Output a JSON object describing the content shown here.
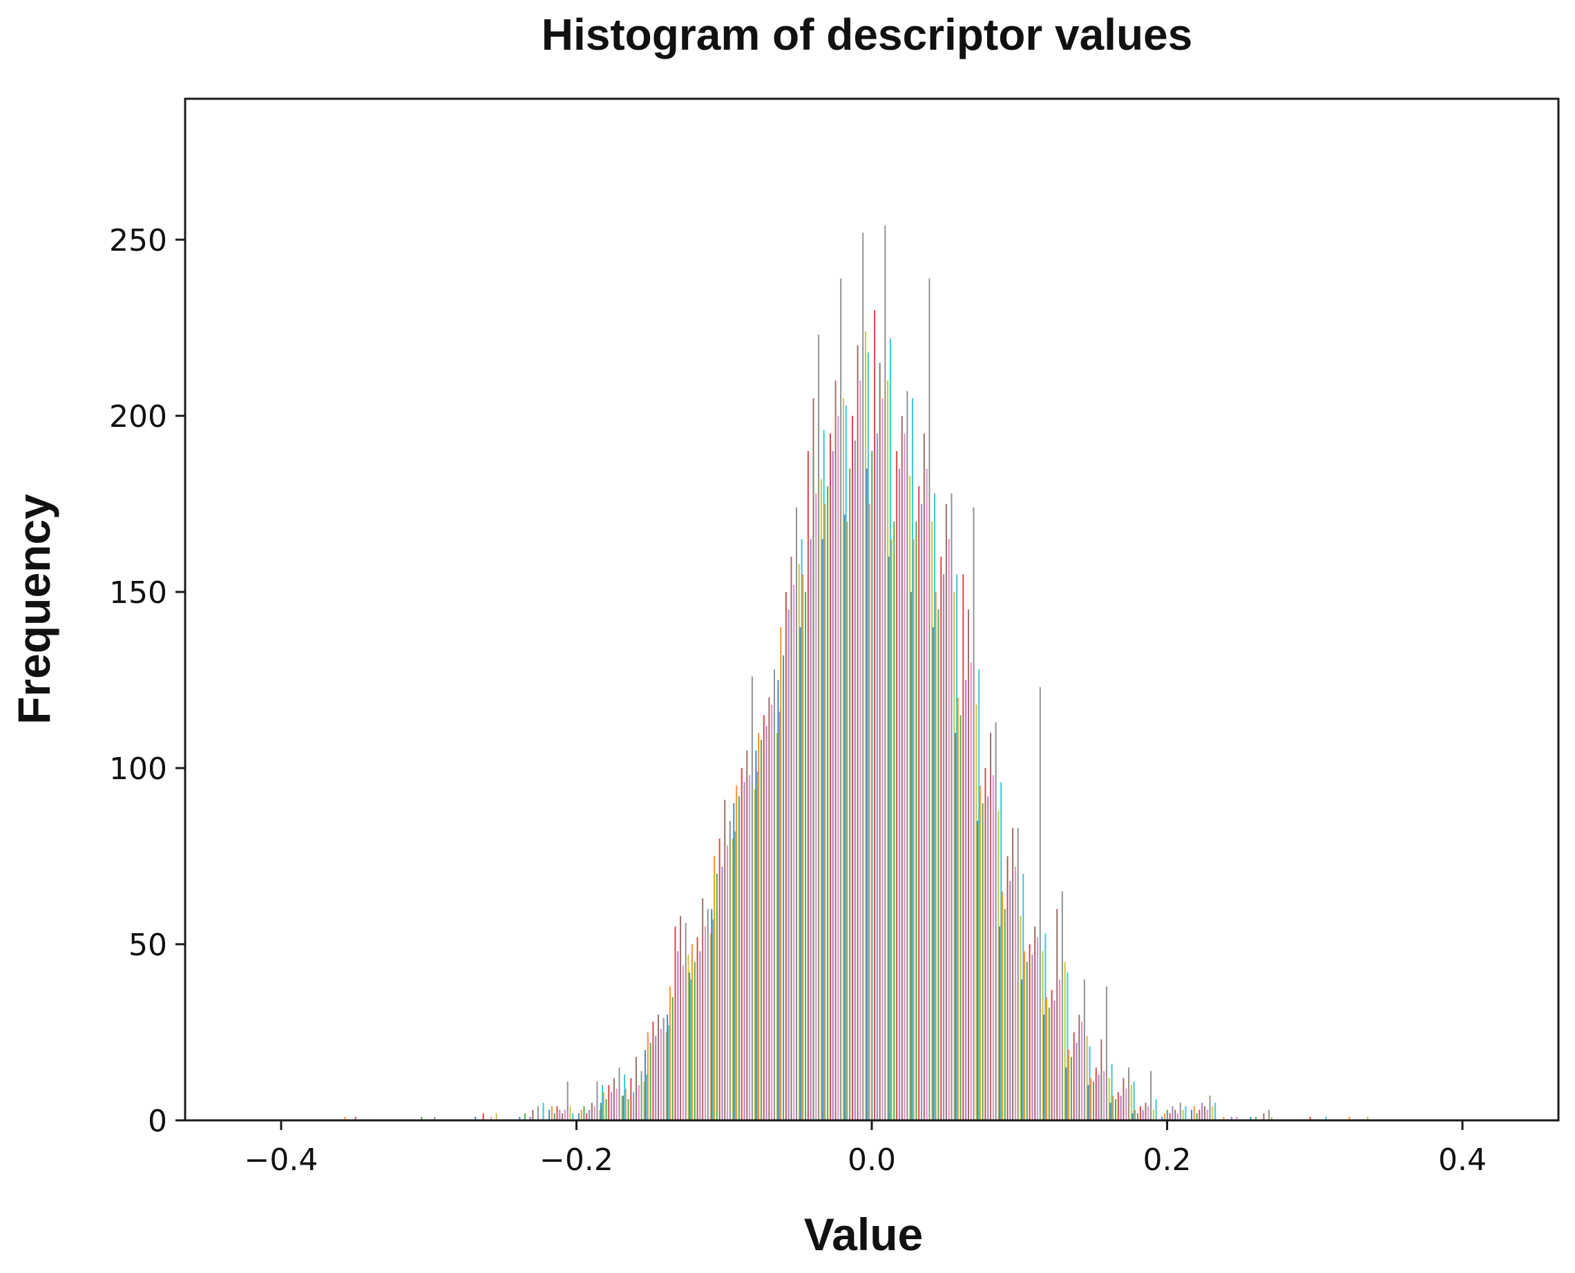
{
  "chart_data": {
    "type": "bar",
    "title": "Histogram of descriptor values",
    "xlabel": "Value",
    "ylabel": "Frequency",
    "xlim": [
      -0.465,
      0.465
    ],
    "ylim": [
      0,
      290
    ],
    "x_ticks": [
      {
        "value": -0.4,
        "label": "−0.4"
      },
      {
        "value": -0.2,
        "label": "−0.2"
      },
      {
        "value": 0.0,
        "label": "0.0"
      },
      {
        "value": 0.2,
        "label": "0.2"
      },
      {
        "value": 0.4,
        "label": "0.4"
      }
    ],
    "y_ticks": [
      {
        "value": 0,
        "label": "0"
      },
      {
        "value": 50,
        "label": "50"
      },
      {
        "value": 100,
        "label": "100"
      },
      {
        "value": 150,
        "label": "150"
      },
      {
        "value": 200,
        "label": "200"
      },
      {
        "value": 250,
        "label": "250"
      }
    ],
    "grid": false,
    "legend": "none",
    "series_colors": [
      "#1f77b4",
      "#ff7f0e",
      "#2ca02c",
      "#d62728",
      "#9467bd",
      "#8c564b",
      "#e377c2",
      "#7f7f7f",
      "#bcbd22",
      "#17becf"
    ],
    "bins": [
      {
        "x": -0.35,
        "values": [
          0,
          1,
          0,
          0,
          0,
          1,
          0,
          0,
          0,
          0
        ]
      },
      {
        "x": -0.3,
        "values": [
          0,
          0,
          1,
          0,
          0,
          0,
          0,
          1,
          0,
          0
        ]
      },
      {
        "x": -0.26,
        "values": [
          1,
          0,
          0,
          2,
          0,
          0,
          1,
          0,
          2,
          0
        ]
      },
      {
        "x": -0.23,
        "values": [
          1,
          0,
          2,
          0,
          1,
          3,
          0,
          4,
          0,
          5
        ]
      },
      {
        "x": -0.21,
        "values": [
          3,
          4,
          2,
          4,
          3,
          2,
          3,
          11,
          4,
          2
        ]
      },
      {
        "x": -0.19,
        "values": [
          2,
          3,
          4,
          2,
          3,
          5,
          4,
          11,
          3,
          10
        ]
      },
      {
        "x": -0.175,
        "values": [
          5,
          8,
          6,
          10,
          8,
          12,
          9,
          15,
          7,
          13
        ]
      },
      {
        "x": -0.16,
        "values": [
          7,
          9,
          6,
          12,
          8,
          18,
          10,
          14,
          11,
          13
        ]
      },
      {
        "x": -0.145,
        "values": [
          20,
          25,
          22,
          28,
          24,
          30,
          26,
          29,
          25,
          27
        ]
      },
      {
        "x": -0.13,
        "values": [
          30,
          38,
          35,
          55,
          48,
          58,
          44,
          56,
          47,
          40
        ]
      },
      {
        "x": -0.115,
        "values": [
          42,
          50,
          45,
          52,
          48,
          63,
          55,
          60,
          53,
          57
        ]
      },
      {
        "x": -0.1,
        "values": [
          60,
          75,
          70,
          80,
          72,
          91,
          78,
          85,
          80,
          82
        ]
      },
      {
        "x": -0.085,
        "values": [
          90,
          95,
          92,
          100,
          96,
          105,
          98,
          126,
          94,
          99
        ]
      },
      {
        "x": -0.07,
        "values": [
          105,
          110,
          108,
          115,
          112,
          120,
          118,
          128,
          110,
          116
        ]
      },
      {
        "x": -0.055,
        "values": [
          125,
          140,
          132,
          150,
          145,
          160,
          152,
          174,
          158,
          165
        ]
      },
      {
        "x": -0.04,
        "values": [
          140,
          155,
          150,
          190,
          165,
          205,
          178,
          223,
          182,
          196
        ]
      },
      {
        "x": -0.025,
        "values": [
          165,
          175,
          180,
          195,
          190,
          210,
          200,
          239,
          205,
          203
        ]
      },
      {
        "x": -0.01,
        "values": [
          172,
          170,
          185,
          200,
          193,
          220,
          210,
          252,
          224,
          218
        ]
      },
      {
        "x": 0.005,
        "values": [
          185,
          175,
          190,
          230,
          195,
          215,
          205,
          254,
          210,
          222
        ]
      },
      {
        "x": 0.02,
        "values": [
          160,
          165,
          170,
          190,
          185,
          200,
          195,
          207,
          183,
          205
        ]
      },
      {
        "x": 0.035,
        "values": [
          150,
          165,
          170,
          180,
          175,
          195,
          185,
          239,
          170,
          178
        ]
      },
      {
        "x": 0.05,
        "values": [
          140,
          150,
          145,
          160,
          155,
          175,
          165,
          178,
          150,
          155
        ]
      },
      {
        "x": 0.065,
        "values": [
          110,
          120,
          115,
          155,
          125,
          145,
          130,
          174,
          118,
          128
        ]
      },
      {
        "x": 0.08,
        "values": [
          85,
          95,
          90,
          100,
          92,
          110,
          98,
          113,
          88,
          96
        ]
      },
      {
        "x": 0.095,
        "values": [
          55,
          65,
          60,
          75,
          68,
          83,
          72,
          83,
          58,
          70
        ]
      },
      {
        "x": 0.11,
        "values": [
          40,
          48,
          45,
          50,
          47,
          55,
          52,
          123,
          48,
          53
        ]
      },
      {
        "x": 0.125,
        "values": [
          30,
          35,
          32,
          37,
          34,
          60,
          40,
          65,
          45,
          42
        ]
      },
      {
        "x": 0.14,
        "values": [
          15,
          20,
          18,
          25,
          22,
          30,
          28,
          40,
          24,
          21
        ]
      },
      {
        "x": 0.155,
        "values": [
          10,
          12,
          11,
          15,
          13,
          23,
          14,
          38,
          12,
          16
        ]
      },
      {
        "x": 0.17,
        "values": [
          5,
          7,
          6,
          8,
          7,
          12,
          9,
          15,
          10,
          11
        ]
      },
      {
        "x": 0.185,
        "values": [
          2,
          3,
          2,
          4,
          3,
          5,
          4,
          14,
          3,
          6
        ]
      },
      {
        "x": 0.205,
        "values": [
          1,
          2,
          3,
          2,
          4,
          3,
          2,
          5,
          3,
          4
        ]
      },
      {
        "x": 0.225,
        "values": [
          3,
          4,
          2,
          3,
          5,
          4,
          3,
          7,
          4,
          5
        ]
      },
      {
        "x": 0.245,
        "values": [
          0,
          1,
          0,
          0,
          1,
          0,
          1,
          0,
          0,
          0
        ]
      },
      {
        "x": 0.265,
        "values": [
          1,
          0,
          1,
          0,
          0,
          2,
          0,
          3,
          1,
          0
        ]
      },
      {
        "x": 0.3,
        "values": [
          0,
          0,
          0,
          1,
          0,
          0,
          0,
          0,
          0,
          1
        ]
      },
      {
        "x": 0.33,
        "values": [
          0,
          1,
          0,
          0,
          0,
          0,
          0,
          0,
          1,
          0
        ]
      }
    ]
  }
}
